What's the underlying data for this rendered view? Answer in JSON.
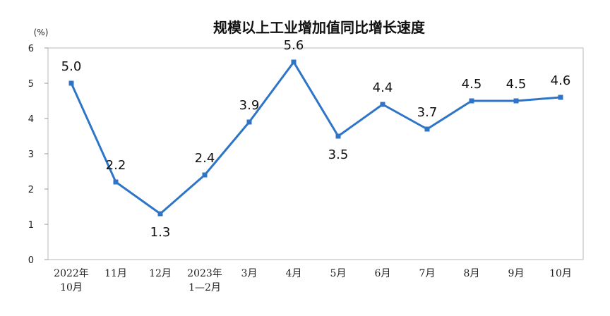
{
  "chart_data": {
    "type": "line",
    "title": "规模以上工业增加值同比增长速度",
    "unit_label": "(%)",
    "categories": [
      "2022年\n10月",
      "11月",
      "12月",
      "2023年\n1—2月",
      "3月",
      "4月",
      "5月",
      "6月",
      "7月",
      "8月",
      "9月",
      "10月"
    ],
    "values": [
      5.0,
      2.2,
      1.3,
      2.4,
      3.9,
      5.6,
      3.5,
      4.4,
      3.7,
      4.5,
      4.5,
      4.6
    ],
    "value_labels": [
      "5.0",
      "2.2",
      "1.3",
      "2.4",
      "3.9",
      "5.6",
      "3.5",
      "4.4",
      "3.7",
      "4.5",
      "4.5",
      "4.6"
    ],
    "label_positions": [
      "above",
      "above",
      "below",
      "above",
      "above",
      "above",
      "below",
      "above",
      "above",
      "above",
      "above",
      "above"
    ],
    "ylim": [
      0,
      6
    ],
    "yticks": [
      0,
      1,
      2,
      3,
      4,
      5,
      6
    ],
    "grid": false,
    "legend": "none",
    "line_color": "#2e75c7"
  }
}
